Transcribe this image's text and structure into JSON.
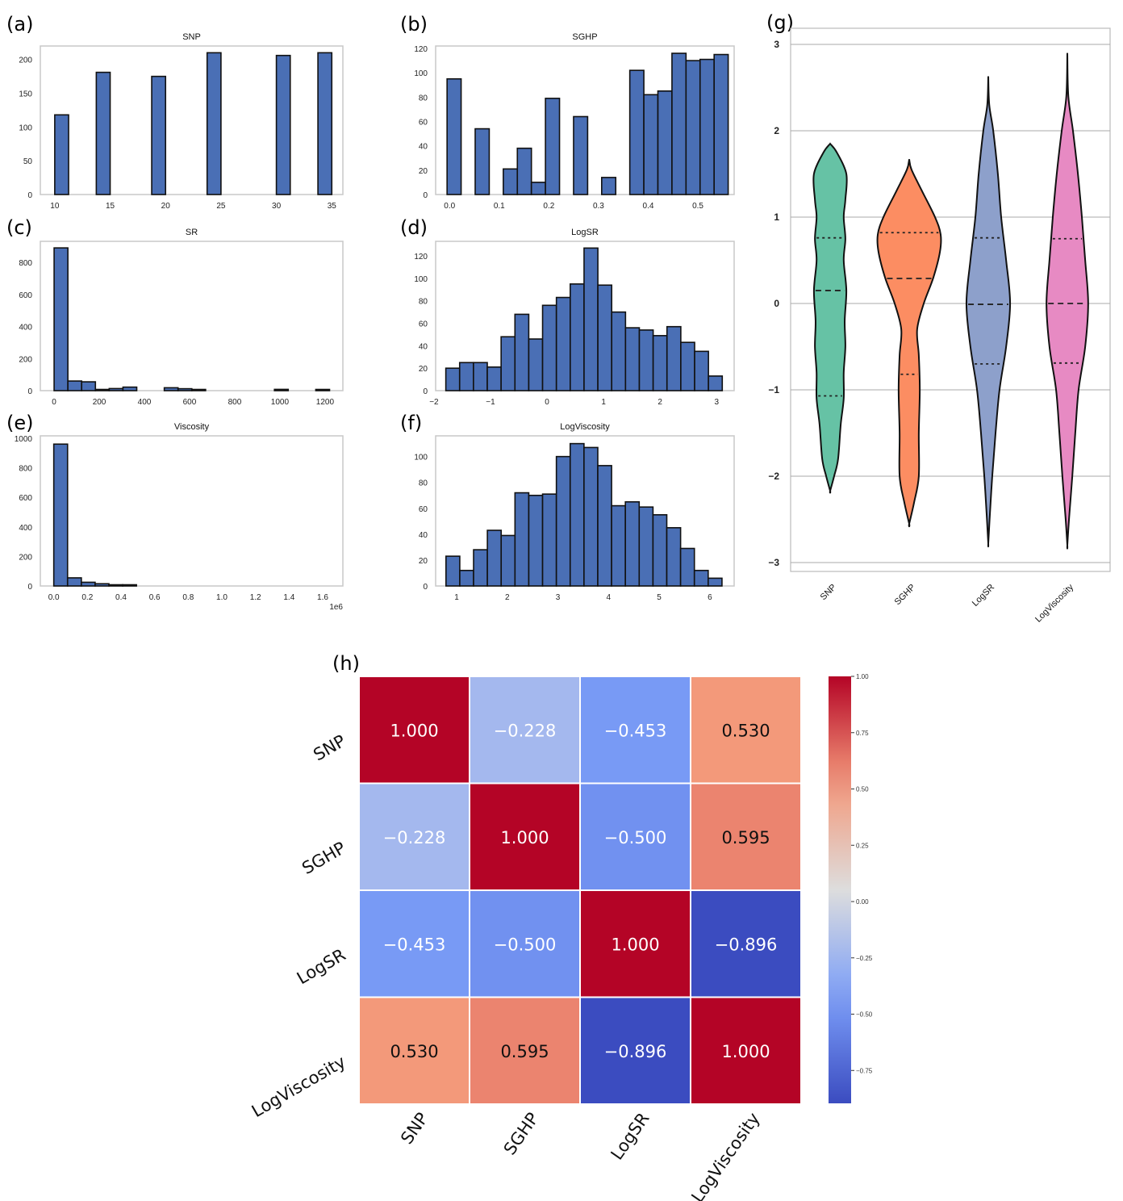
{
  "panel_labels": [
    "(a)",
    "(b)",
    "(c)",
    "(d)",
    "(e)",
    "(f)",
    "(g)",
    "(h)"
  ],
  "colors": {
    "bar": "#4a6fb5",
    "bar_edge": "#111111",
    "frame": "#c8c8c8"
  },
  "chart_data": [
    {
      "type": "bar",
      "title": "SNP",
      "xlim": [
        8.7,
        36
      ],
      "ylim": [
        0,
        220
      ],
      "bin_start": 10,
      "bin_width": 1.25,
      "counts": [
        118,
        0,
        0,
        181,
        0,
        0,
        0,
        175,
        0,
        0,
        0,
        210,
        0,
        0,
        0,
        0,
        206,
        0,
        0,
        210
      ],
      "xticks": [
        10,
        15,
        20,
        25,
        30,
        35
      ],
      "xtick_labels": [
        "10",
        "15",
        "20",
        "25",
        "30",
        "35"
      ],
      "yticks": [
        0,
        50,
        100,
        150,
        200
      ],
      "ytick_labels": [
        "0",
        "50",
        "100",
        "150",
        "200"
      ]
    },
    {
      "type": "bar",
      "title": "SGHP",
      "xlim": [
        -0.028,
        0.573
      ],
      "ylim": [
        0,
        122
      ],
      "bin_start": -0.005,
      "bin_width": 0.0283,
      "counts": [
        95,
        0,
        54,
        0,
        21,
        38,
        10,
        79,
        0,
        64,
        0,
        14,
        0,
        102,
        82,
        85,
        116,
        110,
        111,
        115
      ],
      "xticks": [
        0,
        0.1,
        0.2,
        0.3,
        0.4,
        0.5
      ],
      "xtick_labels": [
        "0.0",
        "0.1",
        "0.2",
        "0.3",
        "0.4",
        "0.5"
      ],
      "yticks": [
        0,
        20,
        40,
        60,
        80,
        100,
        120
      ],
      "ytick_labels": [
        "0",
        "20",
        "40",
        "60",
        "80",
        "100",
        "120"
      ]
    },
    {
      "type": "bar",
      "title": "SR",
      "xlim": [
        -61,
        1279
      ],
      "ylim": [
        0,
        931
      ],
      "bin_start": 0,
      "bin_width": 61,
      "counts": [
        890,
        60,
        55,
        3,
        13,
        22,
        0,
        0,
        18,
        12,
        3,
        0,
        0,
        0,
        0,
        0,
        8,
        0,
        0,
        3
      ],
      "xticks": [
        0,
        200,
        400,
        600,
        800,
        1000,
        1200
      ],
      "xtick_labels": [
        "0",
        "200",
        "400",
        "600",
        "800",
        "1000",
        "1200"
      ],
      "yticks": [
        0,
        200,
        400,
        600,
        800
      ],
      "ytick_labels": [
        "0",
        "200",
        "400",
        "600",
        "800"
      ]
    },
    {
      "type": "bar",
      "title": "LogSR",
      "xlim": [
        -1.97,
        3.31
      ],
      "ylim": [
        0,
        133
      ],
      "bin_start": -1.79,
      "bin_width": 0.2445,
      "counts": [
        20,
        25,
        25,
        21,
        48,
        68,
        46,
        76,
        83,
        95,
        127,
        94,
        70,
        56,
        54,
        49,
        57,
        43,
        35,
        13
      ],
      "xticks": [
        -2,
        -1,
        0,
        1,
        2,
        3
      ],
      "xtick_labels": [
        "−2",
        "−1",
        "0",
        "1",
        "2",
        "3"
      ],
      "yticks": [
        0,
        20,
        40,
        60,
        80,
        100,
        120
      ],
      "ytick_labels": [
        "0",
        "20",
        "40",
        "60",
        "80",
        "100",
        "120"
      ]
    },
    {
      "type": "bar",
      "title": "Viscosity",
      "xlim": [
        -0.08,
        1.72
      ],
      "ylim": [
        0,
        1016
      ],
      "bin_start": 0,
      "bin_width": 0.082,
      "counts": [
        960,
        55,
        25,
        15,
        4,
        3,
        0,
        0,
        0,
        0,
        0,
        0,
        0,
        0,
        0,
        0,
        0,
        0,
        0,
        0
      ],
      "xticks": [
        0,
        0.2,
        0.4,
        0.6,
        0.8,
        1.0,
        1.2,
        1.4,
        1.6
      ],
      "xtick_labels": [
        "0.0",
        "0.2",
        "0.4",
        "0.6",
        "0.8",
        "1.0",
        "1.2",
        "1.4",
        "1.6"
      ],
      "x_offset_label": "1e6",
      "yticks": [
        0,
        200,
        400,
        600,
        800,
        1000
      ],
      "ytick_labels": [
        "0",
        "200",
        "400",
        "600",
        "800",
        "1000"
      ]
    },
    {
      "type": "bar",
      "title": "LogViscosity",
      "xlim": [
        0.586,
        6.48
      ],
      "ylim": [
        0,
        116
      ],
      "bin_start": 0.79,
      "bin_width": 0.2725,
      "counts": [
        23,
        12,
        28,
        43,
        39,
        72,
        70,
        71,
        100,
        110,
        107,
        93,
        62,
        65,
        61,
        55,
        45,
        29,
        12,
        6
      ],
      "xticks": [
        1,
        2,
        3,
        4,
        5,
        6
      ],
      "xtick_labels": [
        "1",
        "2",
        "3",
        "4",
        "5",
        "6"
      ],
      "yticks": [
        0,
        20,
        40,
        60,
        80,
        100
      ],
      "ytick_labels": [
        "0",
        "20",
        "40",
        "60",
        "80",
        "100"
      ]
    },
    {
      "type": "violin",
      "ylim": [
        -3.2,
        3.2
      ],
      "yticks": [
        -3,
        -2,
        -1,
        0,
        1,
        2,
        3
      ],
      "ytick_labels": [
        "−3",
        "−2",
        "−1",
        "0",
        "1",
        "2",
        "3"
      ],
      "categories": [
        "SNP",
        "SGHP",
        "LogSR",
        "LogViscosity"
      ],
      "series": [
        {
          "name": "SNP",
          "color": "#66c2a5",
          "quartiles": [
            -1.07,
            0.15,
            0.76
          ],
          "profile": [
            [
              1.85,
              0
            ],
            [
              1.75,
              0.2
            ],
            [
              1.5,
              0.49
            ],
            [
              1.2,
              0.46
            ],
            [
              1.0,
              0.41
            ],
            [
              0.75,
              0.46
            ],
            [
              0.5,
              0.41
            ],
            [
              0.15,
              0.49
            ],
            [
              -0.2,
              0.44
            ],
            [
              -0.5,
              0.46
            ],
            [
              -0.8,
              0.41
            ],
            [
              -1.1,
              0.41
            ],
            [
              -1.4,
              0.32
            ],
            [
              -1.8,
              0.24
            ],
            [
              -2.0,
              0.12
            ],
            [
              -2.17,
              0
            ]
          ]
        },
        {
          "name": "SGHP",
          "color": "#fc8d62",
          "quartiles": [
            -0.82,
            0.29,
            0.82
          ],
          "profile": [
            [
              1.67,
              0
            ],
            [
              1.55,
              0.07
            ],
            [
              1.3,
              0.39
            ],
            [
              1.0,
              0.78
            ],
            [
              0.8,
              0.95
            ],
            [
              0.6,
              0.93
            ],
            [
              0.3,
              0.73
            ],
            [
              0.0,
              0.44
            ],
            [
              -0.3,
              0.24
            ],
            [
              -0.6,
              0.29
            ],
            [
              -1.0,
              0.32
            ],
            [
              -1.5,
              0.29
            ],
            [
              -2.0,
              0.29
            ],
            [
              -2.3,
              0.15
            ],
            [
              -2.55,
              0
            ]
          ]
        },
        {
          "name": "LogSR",
          "color": "#8da0cb",
          "quartiles": [
            -0.7,
            -0.01,
            0.76
          ],
          "profile": [
            [
              2.63,
              0
            ],
            [
              2.3,
              0.03
            ],
            [
              2.0,
              0.15
            ],
            [
              1.5,
              0.29
            ],
            [
              1.0,
              0.39
            ],
            [
              0.5,
              0.54
            ],
            [
              0.0,
              0.66
            ],
            [
              -0.5,
              0.54
            ],
            [
              -1.0,
              0.34
            ],
            [
              -1.5,
              0.22
            ],
            [
              -2.0,
              0.12
            ],
            [
              -2.5,
              0.04
            ],
            [
              -2.78,
              0
            ]
          ]
        },
        {
          "name": "LogViscosity",
          "color": "#e78ac3",
          "quartiles": [
            -0.69,
            0.0,
            0.75
          ],
          "profile": [
            [
              2.9,
              0
            ],
            [
              2.4,
              0.03
            ],
            [
              2.0,
              0.17
            ],
            [
              1.5,
              0.32
            ],
            [
              1.0,
              0.44
            ],
            [
              0.5,
              0.54
            ],
            [
              0.0,
              0.63
            ],
            [
              -0.5,
              0.54
            ],
            [
              -1.0,
              0.34
            ],
            [
              -1.5,
              0.24
            ],
            [
              -2.0,
              0.15
            ],
            [
              -2.5,
              0.05
            ],
            [
              -2.8,
              0
            ]
          ]
        }
      ]
    },
    {
      "type": "heatmap",
      "labels": [
        "SNP",
        "SGHP",
        "LogSR",
        "LogViscosity"
      ],
      "values": [
        [
          1.0,
          -0.228,
          -0.453,
          0.53
        ],
        [
          -0.228,
          1.0,
          -0.5,
          0.595
        ],
        [
          -0.453,
          -0.5,
          1.0,
          -0.896
        ],
        [
          0.53,
          0.595,
          -0.896,
          1.0
        ]
      ],
      "value_labels": [
        [
          "1.000",
          "−0.228",
          "−0.453",
          "0.530"
        ],
        [
          "−0.228",
          "1.000",
          "−0.500",
          "0.595"
        ],
        [
          "−0.453",
          "−0.500",
          "1.000",
          "−0.896"
        ],
        [
          "0.530",
          "0.595",
          "−0.896",
          "1.000"
        ]
      ],
      "vmin": -0.896,
      "vmax": 1.0,
      "colormap": "coolwarm",
      "colorbar_ticks": [
        1.0,
        0.75,
        0.5,
        0.25,
        0.0,
        -0.25,
        -0.5,
        -0.75
      ],
      "colorbar_tick_labels": [
        "1.00",
        "0.75",
        "0.50",
        "0.25",
        "0.00",
        "−0.25",
        "−0.50",
        "−0.75"
      ]
    }
  ]
}
